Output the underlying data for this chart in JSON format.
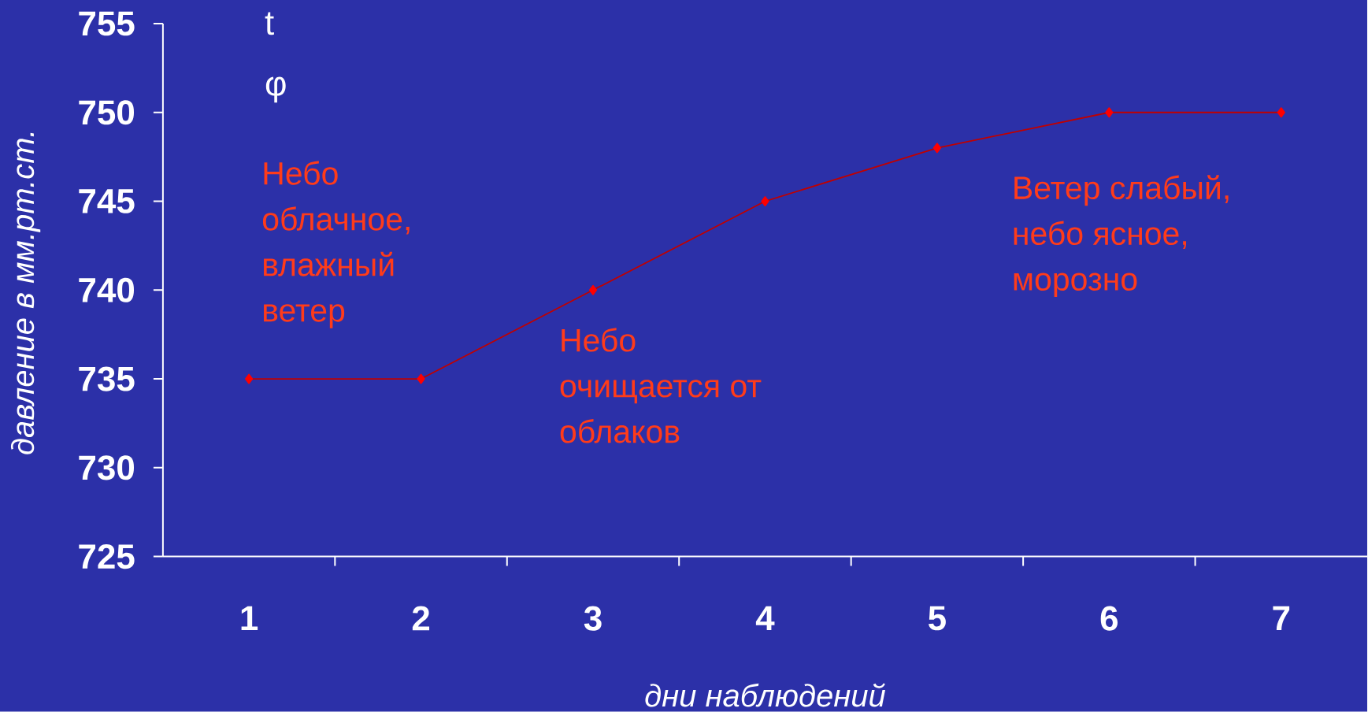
{
  "chart_data": {
    "type": "line",
    "categories": [
      "1",
      "2",
      "3",
      "4",
      "5",
      "6",
      "7"
    ],
    "values": [
      735,
      735,
      740,
      745,
      748,
      750,
      750
    ],
    "color": "#c00000",
    "marker": "diamond",
    "line_style": "solid",
    "ylim": [
      725,
      755
    ],
    "yticks": [
      725,
      730,
      735,
      740,
      745,
      750,
      755
    ],
    "xlabel": "дни наблюдений",
    "ylabel": "давление в мм.рт.ст.",
    "annotations": [
      "t",
      "φ",
      "Небо облачное, влажный ветер",
      "Небо очищается от облаков",
      "Ветер слабый, небо ясное, морозно"
    ]
  }
}
